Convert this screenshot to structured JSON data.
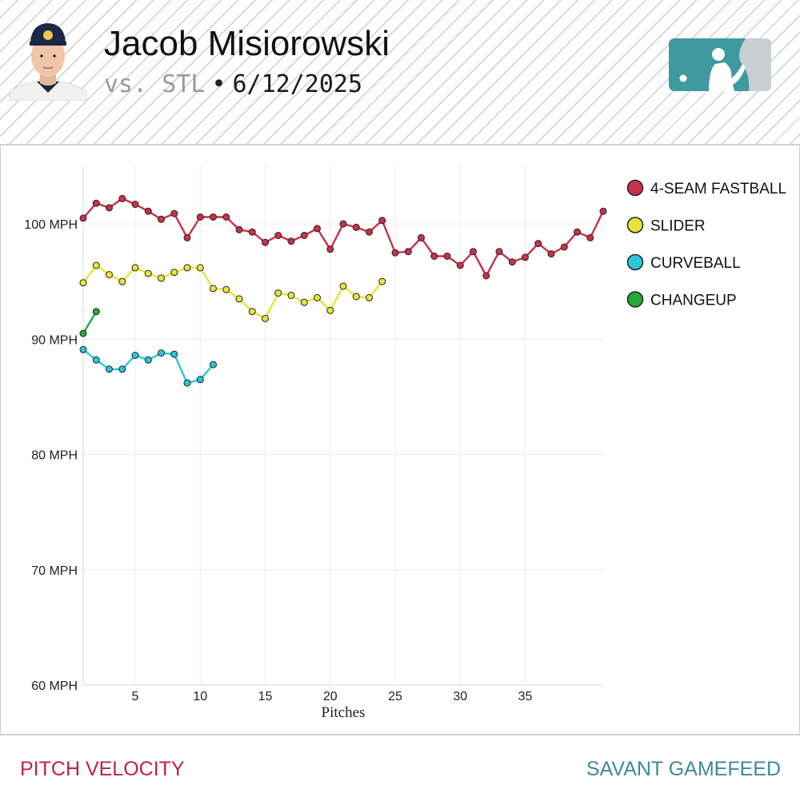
{
  "header": {
    "player_name": "Jacob Misiorowski",
    "opponent": "vs. STL",
    "separator": "•",
    "game_date": "6/12/2025"
  },
  "footer": {
    "left_label": "PITCH VELOCITY",
    "right_label": "SAVANT GAMEFEED"
  },
  "colors": {
    "fastball": "#c8324a",
    "slider": "#e8e43a",
    "curveball": "#2cc6dc",
    "changeup": "#2aa83a",
    "logo_teal": "#3f9aa0",
    "footer_left": "#c0204e",
    "footer_right": "#3f8b92"
  },
  "chart_data": {
    "type": "line",
    "title": "PITCH VELOCITY",
    "xlabel": "Pitches",
    "ylabel": "",
    "xlim": [
      1,
      41
    ],
    "ylim": [
      60,
      105
    ],
    "x_ticks": [
      5,
      10,
      15,
      20,
      25,
      30,
      35
    ],
    "y_ticks": [
      {
        "value": 60,
        "label": "60 MPH"
      },
      {
        "value": 70,
        "label": "70 MPH"
      },
      {
        "value": 80,
        "label": "80 MPH"
      },
      {
        "value": 90,
        "label": "90 MPH"
      },
      {
        "value": 100,
        "label": "100 MPH"
      }
    ],
    "grid": true,
    "legend_position": "top-right",
    "series": [
      {
        "name": "4-SEAM FASTBALL",
        "color": "#c8324a",
        "values": [
          100.5,
          101.8,
          101.4,
          102.2,
          101.7,
          101.1,
          100.4,
          100.9,
          98.8,
          100.6,
          100.6,
          100.6,
          99.5,
          99.3,
          98.4,
          99.0,
          98.5,
          99.0,
          99.6,
          97.8,
          100.0,
          99.7,
          99.3,
          100.3,
          97.5,
          97.6,
          98.8,
          97.2,
          97.2,
          96.4,
          97.6,
          95.5,
          97.6,
          96.7,
          97.1,
          98.3,
          97.4,
          98.0,
          99.3,
          98.8,
          101.1
        ]
      },
      {
        "name": "SLIDER",
        "color": "#e8e43a",
        "values": [
          94.9,
          96.4,
          95.6,
          95.0,
          96.2,
          95.7,
          95.3,
          95.8,
          96.2,
          96.2,
          94.4,
          94.3,
          93.5,
          92.4,
          91.8,
          94.0,
          93.8,
          93.2,
          93.6,
          92.5,
          94.6,
          93.7,
          93.6,
          95.0
        ]
      },
      {
        "name": "CURVEBALL",
        "color": "#2cc6dc",
        "values": [
          89.1,
          88.2,
          87.4,
          87.4,
          88.6,
          88.2,
          88.8,
          88.7,
          86.2,
          86.5,
          87.8
        ]
      },
      {
        "name": "CHANGEUP",
        "color": "#2aa83a",
        "values": [
          90.5,
          92.4
        ]
      }
    ]
  }
}
